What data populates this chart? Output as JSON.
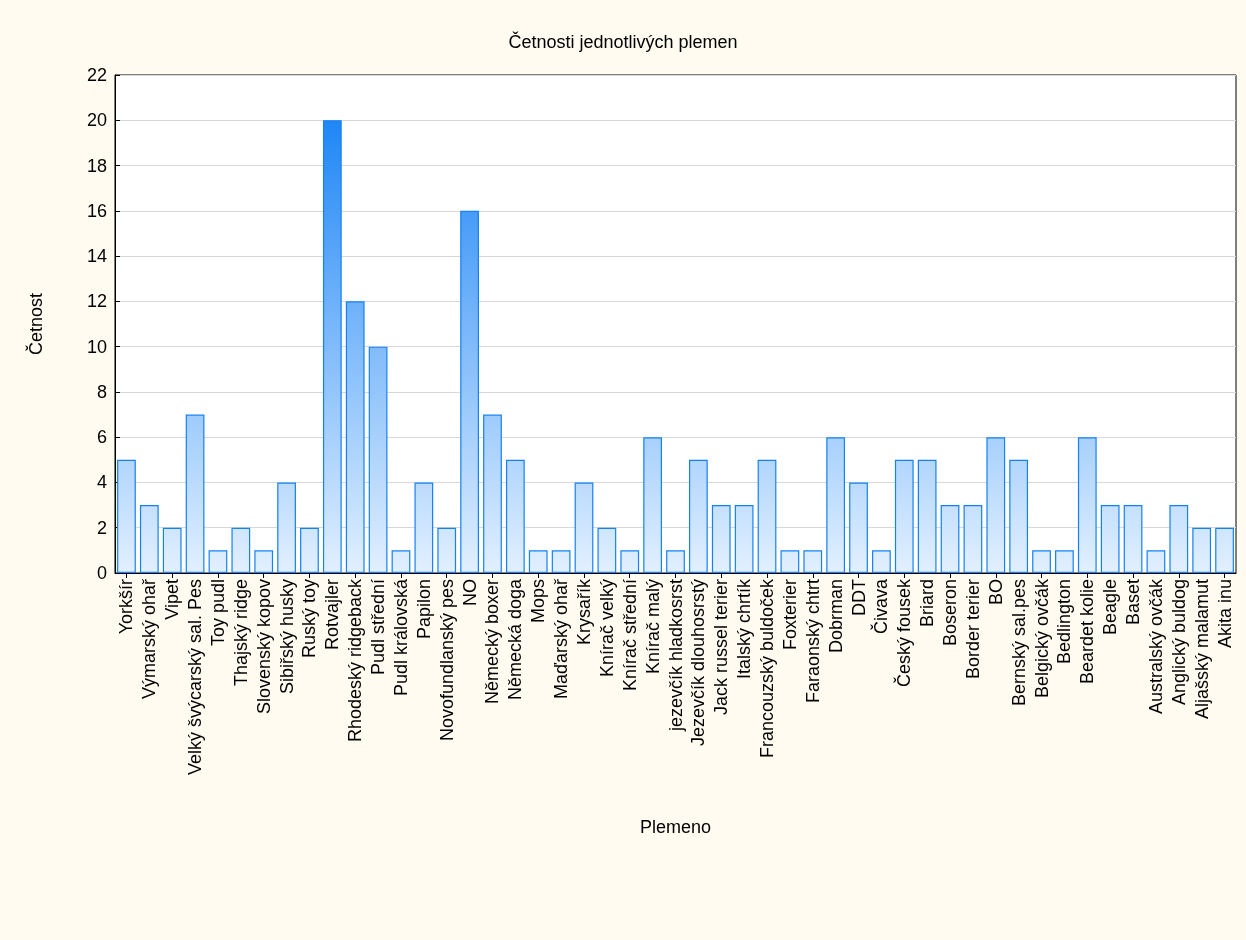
{
  "chart_data": {
    "type": "bar",
    "title": "Četnosti jednotlivých plemen",
    "xlabel": "Plemeno",
    "ylabel": "Četnost",
    "categories": [
      "Yorkšír",
      "Výmarský ohař",
      "Vipet",
      "Velký švýcarský sal. Pes",
      "Toy pudl",
      "Thajský ridge",
      "Slovenský kopov",
      "Sibiřský husky",
      "Ruský toy",
      "Rotvajler",
      "Rhodeský ridgeback",
      "Pudl střední",
      "Pudl královská",
      "Papilon",
      "Novofundlanský pes",
      "NO",
      "Německý boxer",
      "Německá doga",
      "Mops",
      "Maďarský ohař",
      "Krysařík",
      "Knírač velký",
      "Knírač střední",
      "Knírač malý",
      "jezevčík hladkosrst",
      "Jezevčík dlouhosrstý",
      "Jack russel terier",
      "Italský chrtík",
      "Francouzský buldoček",
      "Foxterier",
      "Faraonský chtrt",
      "Dobrman",
      "DDT",
      "Čivava",
      "Český fousek",
      "Briard",
      "Boseron",
      "Border terier",
      "BO",
      "Bernský sal.pes",
      "Belgický ovčák",
      "Bedlington",
      "Beardet kolie",
      "Beagle",
      "Baset",
      "Australský ovčák",
      "Anglický buldog",
      "Aljašský malamut",
      "Akita inu"
    ],
    "values": [
      5,
      3,
      2,
      7,
      1,
      2,
      1,
      4,
      2,
      20,
      12,
      10,
      1,
      4,
      2,
      16,
      7,
      5,
      1,
      1,
      4,
      2,
      1,
      6,
      1,
      5,
      3,
      3,
      5,
      1,
      1,
      6,
      4,
      1,
      5,
      5,
      3,
      3,
      6,
      5,
      1,
      1,
      6,
      3,
      3,
      1,
      3,
      2,
      2
    ],
    "color": "#1581f5",
    "ylim": [
      0,
      22
    ],
    "yticks": [
      0,
      2,
      4,
      6,
      8,
      10,
      12,
      14,
      16,
      18,
      20,
      22
    ],
    "grid": "y"
  }
}
